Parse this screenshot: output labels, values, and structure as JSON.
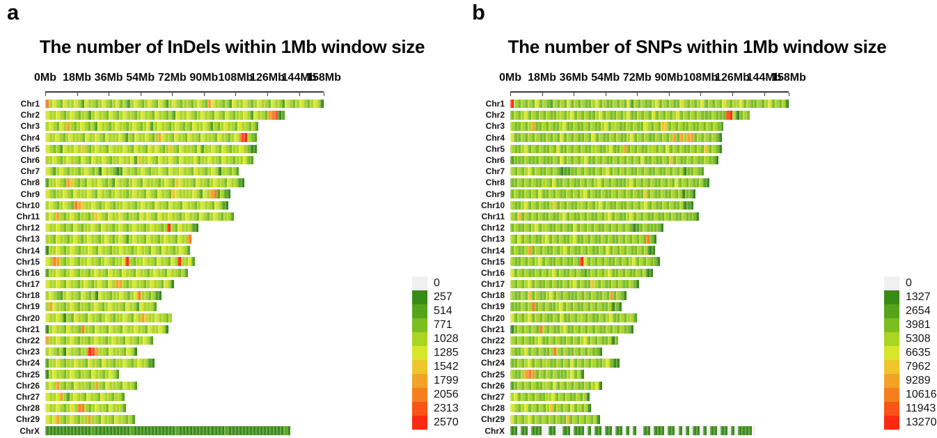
{
  "figure": {
    "panel_a_label": "a",
    "panel_b_label": "b"
  },
  "palette": [
    "#f0f0f0",
    "#3a8a17",
    "#55a41c",
    "#7cbd20",
    "#aad522",
    "#d7e72a",
    "#eec52c",
    "#f2a226",
    "#f57f1e",
    "#f95315",
    "#fb2a10"
  ],
  "axis": {
    "max_mb": 158,
    "ticks": [
      {
        "label": "0Mb",
        "mb": 0
      },
      {
        "label": "18Mb",
        "mb": 18
      },
      {
        "label": "36Mb",
        "mb": 36
      },
      {
        "label": "54Mb",
        "mb": 54
      },
      {
        "label": "72Mb",
        "mb": 72
      },
      {
        "label": "90Mb",
        "mb": 90
      },
      {
        "label": "108Mb",
        "mb": 108
      },
      {
        "label": "126Mb",
        "mb": 126
      },
      {
        "label": "144Mb",
        "mb": 144
      },
      {
        "label": "158Mb",
        "mb": 158
      }
    ]
  },
  "chart_data": [
    {
      "type": "heatmap",
      "panel": "a",
      "title": "The number of InDels within 1Mb window size",
      "window_size": "1Mb",
      "bin_mb": 2,
      "legend_values": [
        0,
        257,
        514,
        771,
        1028,
        1285,
        1542,
        1799,
        2056,
        2313,
        2570
      ],
      "rows": [
        {
          "name": "Chr1",
          "length_mb": 158,
          "bins": "8454354454254434543453424543454354245434434543754434254454345443544254345434541"
        },
        {
          "name": "Chr2",
          "length_mb": 136,
          "bins": "54454345434424544354345443454435443425445434544354354344542544378912"
        },
        {
          "name": "Chr3",
          "length_mb": 121,
          "bins": "4543547434543425443454434543452454434543435445424345443544342"
        },
        {
          "name": "Chr4",
          "length_mb": 120,
          "bins": "544543454443544543544454243544543475443544354435444354434549A432"
        },
        {
          "name": "Chr5",
          "length_mb": 120,
          "bins": "543425445464345443544454354435454346435444352445435434454311"
        },
        {
          "name": "Chr6",
          "length_mb": 118,
          "bins": "44543454435435445434454452644543544543544453445443544344532"
        },
        {
          "name": "Chr7",
          "length_mb": 110,
          "bins": "5424543443454341544312544345434454354454435443454144342"
        },
        {
          "name": "Chr8",
          "length_mb": 113,
          "bins": "244543764343544543425443454354443454365444354434544354421"
        },
        {
          "name": "Chr9",
          "length_mb": 105,
          "bins": "54344543544454354434544345443543544365444454254782421"
        },
        {
          "name": "Chr10",
          "length_mb": 104,
          "bins": "4543454387644543454344544345443544354435443454435421"
        },
        {
          "name": "Chr11",
          "length_mb": 107,
          "bins": "454743454344346543544543443545435445443454435434543442"
        },
        {
          "name": "Chr12",
          "length_mb": 87,
          "bins": "54454343543445435443454345443454434A43544421"
        },
        {
          "name": "Chr13",
          "length_mb": 83,
          "bins": "443544345434544345434542454435443454435448"
        },
        {
          "name": "Chr14",
          "length_mb": 82,
          "bins": "14454345434454354434454434544354354434542"
        },
        {
          "name": "Chr15",
          "length_mb": 85,
          "bins": "54874345434454434543445A43445443544354A4452"
        },
        {
          "name": "Chr16",
          "length_mb": 81,
          "bins": "24454345434434544354435443544345443544342"
        },
        {
          "name": "Chr17",
          "length_mb": 73,
          "bins": "5445435443454345435477434544345443541"
        },
        {
          "name": "Chr18",
          "length_mb": 66,
          "bins": "454324544354341544344543458443421"
        },
        {
          "name": "Chr19",
          "length_mb": 63,
          "bins": "47544345434434543454443544254442"
        },
        {
          "name": "Chr20",
          "length_mb": 72,
          "bins": "544541435443544345434454354764454434"
        },
        {
          "name": "Chr21",
          "length_mb": 70,
          "bins": "14544354438443544354435445443544541"
        },
        {
          "name": "Chr22",
          "length_mb": 61,
          "bins": "7445434543443454434544354434542"
        },
        {
          "name": "Chr23",
          "length_mb": 52,
          "bins": "454341544344A9744354443541"
        },
        {
          "name": "Chr24",
          "length_mb": 62,
          "bins": "2445434454435443544344543454421"
        },
        {
          "name": "Chr25",
          "length_mb": 42,
          "bins": "145443454344354434542"
        },
        {
          "name": "Chr26",
          "length_mb": 52,
          "bins": "45474343544434743544435442"
        },
        {
          "name": "Chr27",
          "length_mb": 45,
          "bins": "54457424544354435443442"
        },
        {
          "name": "Chr28",
          "length_mb": 46,
          "bins": "54454345488434544354442"
        },
        {
          "name": "Chr29",
          "length_mb": 51,
          "bins": "54574345434474435443544342"
        },
        {
          "name": "ChrX",
          "length_mb": 139,
          "bins": "1111111111111211111111112111111111111211111111111112111111111111111121"
        }
      ]
    },
    {
      "type": "heatmap",
      "panel": "b",
      "title": "The number of SNPs within 1Mb window size",
      "window_size": "1Mb",
      "bin_mb": 2,
      "legend_values": [
        0,
        1327,
        2654,
        3981,
        5308,
        6635,
        7962,
        9289,
        10616,
        11943,
        13270
      ],
      "rows": [
        {
          "name": "Chr1",
          "length_mb": 158,
          "bins": "A434343534324343534343345343343435243433453434335434345343435434453433434534341"
        },
        {
          "name": "Chr2",
          "length_mb": 136,
          "bins": "34345343434334434534343345343343453343435343434534343433343339A41343"
        },
        {
          "name": "Chr3",
          "length_mb": 121,
          "bins": "4334347334343345334334343345344334343354343663434334334343432"
        },
        {
          "name": "Chr4",
          "length_mb": 120,
          "bins": "533434343343435343433435343343433453434334343473747734343431"
        },
        {
          "name": "Chr5",
          "length_mb": 120,
          "bins": "433453434334353343434334433453347343433443435343433434363431"
        },
        {
          "name": "Chr6",
          "length_mb": 118,
          "bins": "23334333433343534343453343433434343435334334363433434334331"
        },
        {
          "name": "Chr7",
          "length_mb": 110,
          "bins": "4343453433434312233434334345343434334343343343434133432"
        },
        {
          "name": "Chr8",
          "length_mb": 113,
          "bins": "334343433443533434334343453434333453434343343435343433421"
        },
        {
          "name": "Chr9",
          "length_mb": 105,
          "bins": "34334343533434334343453433433434343433634334334341331"
        },
        {
          "name": "Chr10",
          "length_mb": 104,
          "bins": "4334534343346343433443434534334334343453433434334121"
        },
        {
          "name": "Chr11",
          "length_mb": 107,
          "bins": "436343434334334534334343343453433453434334334343343331"
        },
        {
          "name": "Chr12",
          "length_mb": 87,
          "bins": "34334345344334343353434343343434343123433331"
        },
        {
          "name": "Chr13",
          "length_mb": 83,
          "bins": "435343433453434334533434334343343434343831"
        },
        {
          "name": "Chr14",
          "length_mb": 82,
          "bins": "34334734343343453433434334353434343343411"
        },
        {
          "name": "Chr15",
          "length_mb": 85,
          "bins": "43343434534334343343A5343434334343453434331"
        },
        {
          "name": "Chr16",
          "length_mb": 81,
          "bins": "53434334343453433434323434345334343343411"
        },
        {
          "name": "Chr17",
          "length_mb": 73,
          "bins": "4343453433434334345343364343343433431"
        },
        {
          "name": "Chr18",
          "length_mb": 66,
          "bins": "433436343345343433343434334373431"
        },
        {
          "name": "Chr19",
          "length_mb": 63,
          "bins": "33343483434334534343343434334131"
        },
        {
          "name": "Chr20",
          "length_mb": 72,
          "bins": "534345343433435334344343343453343442"
        },
        {
          "name": "Chr21",
          "length_mb": 70,
          "bins": "13434343843433453343434343343434331"
        },
        {
          "name": "Chr22",
          "length_mb": 61,
          "bins": "4343433453343433434345343433413"
        },
        {
          "name": "Chr23",
          "length_mb": 52,
          "bins": "43345343433484343343434331"
        },
        {
          "name": "Chr24",
          "length_mb": 62,
          "bins": "3343453434433434353434343345311"
        },
        {
          "name": "Chr25",
          "length_mb": 42,
          "bins": "433478734343433345341"
        },
        {
          "name": "Chr26",
          "length_mb": 52,
          "bins": "23434343344353434343343451"
        },
        {
          "name": "Chr27",
          "length_mb": 45,
          "bins": "45343434334453434334341"
        },
        {
          "name": "Chr28",
          "length_mb": 46,
          "bins": "54345343434634343534341"
        },
        {
          "name": "Chr29",
          "length_mb": 51,
          "bins": "53434534343434336343434341"
        },
        {
          "name": "ChrX",
          "length_mb": 139,
          "bins": "1101101110011001101110101101101101010011011101101010110101101101011110"
        }
      ]
    }
  ]
}
